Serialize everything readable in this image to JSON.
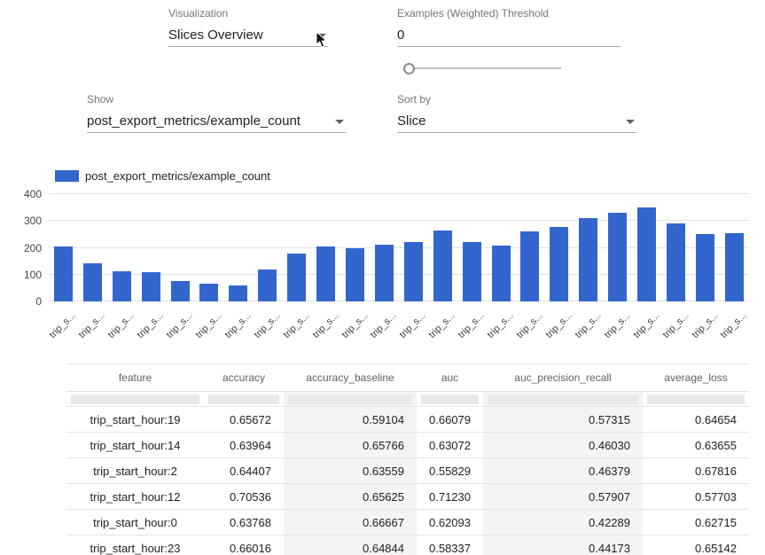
{
  "controls": {
    "visualization": {
      "label": "Visualization",
      "value": "Slices Overview"
    },
    "threshold": {
      "label": "Examples (Weighted) Threshold",
      "value": "0"
    },
    "show": {
      "label": "Show",
      "value": "post_export_metrics/example_count"
    },
    "sort_by": {
      "label": "Sort by",
      "value": "Slice"
    }
  },
  "chart_data": {
    "type": "bar",
    "legend": "post_export_metrics/example_count",
    "x_labels": [
      "trip_s...",
      "trip_s...",
      "trip_s...",
      "trip_s...",
      "trip_s...",
      "trip_s...",
      "trip_s...",
      "trip_s...",
      "trip_s...",
      "trip_s...",
      "trip_s...",
      "trip_s...",
      "trip_s...",
      "trip_s...",
      "trip_s...",
      "trip_s...",
      "trip_s...",
      "trip_s...",
      "trip_s...",
      "trip_s...",
      "trip_s...",
      "trip_s...",
      "trip_s...",
      "trip_s..."
    ],
    "values": [
      205,
      143,
      112,
      108,
      75,
      65,
      60,
      120,
      178,
      205,
      200,
      212,
      222,
      265,
      220,
      208,
      262,
      278,
      312,
      332,
      352,
      290,
      253,
      255
    ],
    "ylim": [
      0,
      400
    ],
    "yticks": [
      0,
      100,
      200,
      300,
      400
    ],
    "bar_color": "#3366cc",
    "xlabel": "",
    "ylabel": ""
  },
  "table": {
    "columns": [
      "feature",
      "accuracy",
      "accuracy_baseline",
      "auc",
      "auc_precision_recall",
      "average_loss"
    ],
    "rows": [
      [
        "trip_start_hour:19",
        "0.65672",
        "0.59104",
        "0.66079",
        "0.57315",
        "0.64654"
      ],
      [
        "trip_start_hour:14",
        "0.63964",
        "0.65766",
        "0.63072",
        "0.46030",
        "0.63655"
      ],
      [
        "trip_start_hour:2",
        "0.64407",
        "0.63559",
        "0.55829",
        "0.46379",
        "0.67816"
      ],
      [
        "trip_start_hour:12",
        "0.70536",
        "0.65625",
        "0.71230",
        "0.57907",
        "0.57703"
      ],
      [
        "trip_start_hour:0",
        "0.63768",
        "0.66667",
        "0.62093",
        "0.42289",
        "0.62715"
      ],
      [
        "trip_start_hour:23",
        "0.66016",
        "0.64844",
        "0.58337",
        "0.44173",
        "0.65142"
      ]
    ]
  }
}
